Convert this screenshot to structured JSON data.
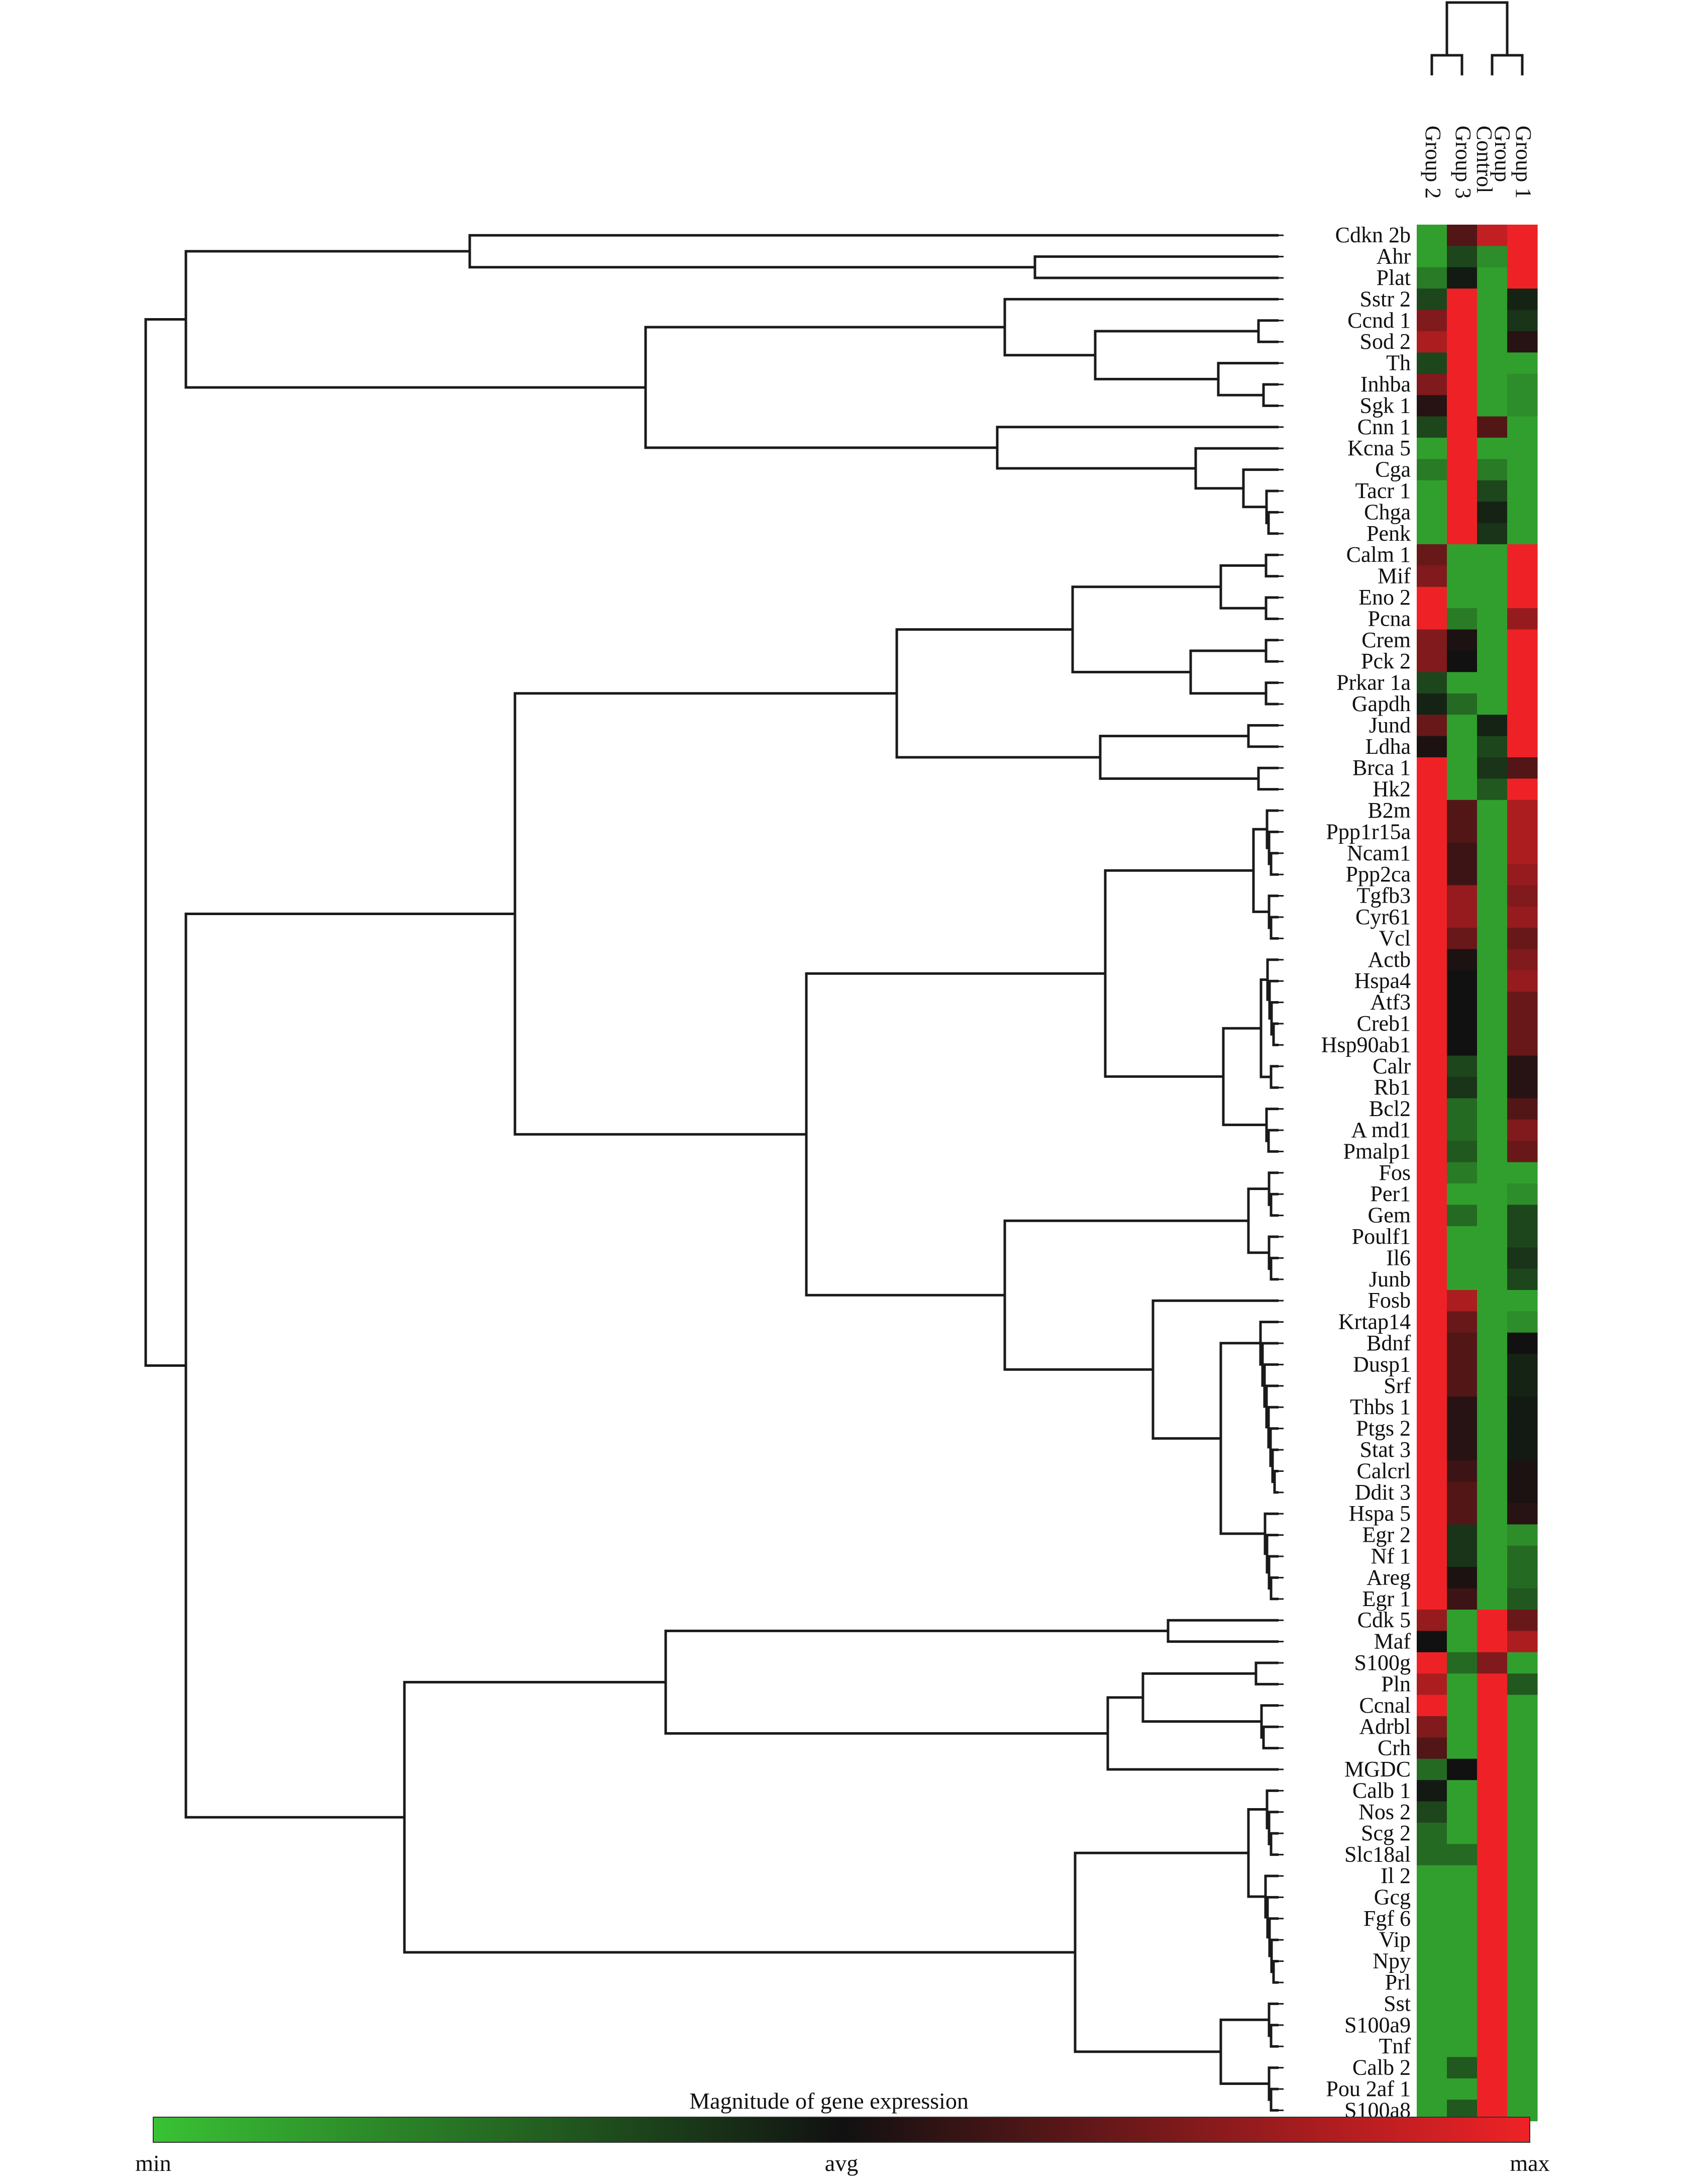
{
  "chart_data": {
    "type": "heatmap",
    "title": "",
    "legend": {
      "title": "Magnitude of gene expression",
      "min_label": "min",
      "mid_label": "avg",
      "max_label": "max",
      "colors": {
        "min": "#39c234",
        "avg": "#111111",
        "max": "#ee2226"
      },
      "placement": "bottom"
    },
    "dendrogram": {
      "rows": "left",
      "columns": "top"
    },
    "columns": [
      "Group 2",
      "Group 3",
      "Control Group",
      "Group 1"
    ],
    "column_leaf_labels": [
      "Group 2",
      "Group 3",
      "Control",
      "Group",
      "Group 1"
    ],
    "scale": "min -1 ... avg 0 ... max 1 (relative expression)",
    "rows": [
      "Cdkn 2b",
      "Ahr",
      "Plat",
      "Sstr 2",
      "Ccnd 1",
      "Sod 2",
      "Th",
      "Inhba",
      "Sgk 1",
      "Cnn 1",
      "Kcna 5",
      "Cga",
      "Tacr 1",
      "Chga",
      "Penk",
      "Calm 1",
      "Mif",
      "Eno 2",
      "Pcna",
      "Crem",
      "Pck 2",
      "Prkar 1a",
      "Gapdh",
      "Jund",
      "Ldha",
      "Brca 1",
      "Hk2",
      "B2m",
      "Ppp1r15a",
      "Ncam1",
      "Ppp2ca",
      "Tgfb3",
      "Cyr61",
      "Vcl",
      "Actb",
      "Hspa4",
      "Atf3",
      "Creb1",
      "Hsp90ab1",
      "Calr",
      "Rb1",
      "Bcl2",
      "A md1",
      "Pmalp1",
      "Fos",
      "Per1",
      "Gem",
      "Poulf1",
      "Il6",
      "Junb",
      "Fosb",
      "Krtap14",
      "Bdnf",
      "Dusp1",
      "Srf",
      "Thbs 1",
      "Ptgs 2",
      "Stat 3",
      "Calcrl",
      "Ddit 3",
      "Hspa 5",
      "Egr 2",
      "Nf 1",
      "Areg",
      "Egr 1",
      "Cdk 5",
      "Maf",
      "S100g",
      "Pln",
      "Ccnal",
      "Adrbl",
      "Crh",
      "MGDC",
      "Calb 1",
      "Nos 2",
      "Scg 2",
      "Slc18al",
      "Il 2",
      "Gcg",
      "Fgf 6",
      "Vip",
      "Npy",
      "Prl",
      "Sst",
      "S100a9",
      "Tnf",
      "Calb 2",
      "Pou 2af 1",
      "S100a8"
    ],
    "values": [
      [
        -0.8,
        0.3,
        0.8,
        1.0
      ],
      [
        -0.8,
        -0.3,
        -0.7,
        1.0
      ],
      [
        -0.6,
        -0.05,
        -0.8,
        1.0
      ],
      [
        -0.3,
        1.0,
        -0.8,
        -0.1
      ],
      [
        0.5,
        1.0,
        -0.8,
        -0.2
      ],
      [
        0.7,
        1.0,
        -0.8,
        0.1
      ],
      [
        -0.3,
        1.0,
        -0.8,
        -0.8
      ],
      [
        0.5,
        1.0,
        -0.8,
        -0.7
      ],
      [
        0.1,
        1.0,
        -0.8,
        -0.7
      ],
      [
        -0.3,
        1.0,
        0.3,
        -0.8
      ],
      [
        -0.8,
        1.0,
        -0.8,
        -0.8
      ],
      [
        -0.6,
        1.0,
        -0.6,
        -0.8
      ],
      [
        -0.8,
        1.0,
        -0.3,
        -0.8
      ],
      [
        -0.8,
        1.0,
        -0.1,
        -0.8
      ],
      [
        -0.8,
        1.0,
        -0.2,
        -0.8
      ],
      [
        0.4,
        -0.8,
        -0.8,
        1.0
      ],
      [
        0.5,
        -0.8,
        -0.8,
        1.0
      ],
      [
        1.0,
        -0.8,
        -0.8,
        1.0
      ],
      [
        1.0,
        -0.6,
        -0.8,
        0.6
      ],
      [
        0.5,
        0.05,
        -0.8,
        1.0
      ],
      [
        0.5,
        0.0,
        -0.8,
        1.0
      ],
      [
        -0.3,
        -0.8,
        -0.8,
        1.0
      ],
      [
        -0.1,
        -0.5,
        -0.8,
        1.0
      ],
      [
        0.4,
        -0.8,
        -0.1,
        1.0
      ],
      [
        0.05,
        -0.8,
        -0.3,
        1.0
      ],
      [
        1.0,
        -0.8,
        -0.2,
        0.3
      ],
      [
        1.0,
        -0.8,
        -0.4,
        1.0
      ],
      [
        1.0,
        0.3,
        -0.8,
        0.7
      ],
      [
        1.0,
        0.3,
        -0.8,
        0.7
      ],
      [
        1.0,
        0.2,
        -0.8,
        0.7
      ],
      [
        1.0,
        0.2,
        -0.8,
        0.6
      ],
      [
        1.0,
        0.6,
        -0.8,
        0.5
      ],
      [
        1.0,
        0.6,
        -0.8,
        0.6
      ],
      [
        1.0,
        0.4,
        -0.8,
        0.4
      ],
      [
        1.0,
        0.05,
        -0.8,
        0.5
      ],
      [
        1.0,
        0.0,
        -0.8,
        0.6
      ],
      [
        1.0,
        0.0,
        -0.8,
        0.4
      ],
      [
        1.0,
        0.0,
        -0.8,
        0.4
      ],
      [
        1.0,
        0.0,
        -0.8,
        0.4
      ],
      [
        1.0,
        -0.3,
        -0.8,
        0.1
      ],
      [
        1.0,
        -0.2,
        -0.8,
        0.1
      ],
      [
        1.0,
        -0.5,
        -0.8,
        0.3
      ],
      [
        1.0,
        -0.5,
        -0.8,
        0.5
      ],
      [
        1.0,
        -0.4,
        -0.8,
        0.4
      ],
      [
        1.0,
        -0.6,
        -0.8,
        -0.8
      ],
      [
        1.0,
        -0.8,
        -0.8,
        -0.7
      ],
      [
        1.0,
        -0.5,
        -0.8,
        -0.3
      ],
      [
        1.0,
        -0.8,
        -0.8,
        -0.3
      ],
      [
        1.0,
        -0.8,
        -0.8,
        -0.2
      ],
      [
        1.0,
        -0.8,
        -0.8,
        -0.3
      ],
      [
        1.0,
        0.7,
        -0.8,
        -0.8
      ],
      [
        1.0,
        0.4,
        -0.8,
        -0.7
      ],
      [
        1.0,
        0.3,
        -0.8,
        0.0
      ],
      [
        1.0,
        0.3,
        -0.8,
        -0.1
      ],
      [
        1.0,
        0.3,
        -0.8,
        -0.1
      ],
      [
        1.0,
        0.1,
        -0.8,
        -0.05
      ],
      [
        1.0,
        0.1,
        -0.8,
        -0.05
      ],
      [
        1.0,
        0.1,
        -0.8,
        -0.05
      ],
      [
        1.0,
        0.2,
        -0.8,
        0.05
      ],
      [
        1.0,
        0.3,
        -0.8,
        0.05
      ],
      [
        1.0,
        0.3,
        -0.8,
        0.1
      ],
      [
        1.0,
        -0.2,
        -0.8,
        -0.7
      ],
      [
        1.0,
        -0.2,
        -0.8,
        -0.5
      ],
      [
        1.0,
        0.05,
        -0.8,
        -0.5
      ],
      [
        1.0,
        0.2,
        -0.8,
        -0.4
      ],
      [
        0.6,
        -0.8,
        1.0,
        0.4
      ],
      [
        0.0,
        -0.8,
        1.0,
        0.7
      ],
      [
        1.0,
        -0.5,
        0.5,
        -0.8
      ],
      [
        0.7,
        -0.8,
        1.0,
        -0.4
      ],
      [
        1.0,
        -0.8,
        1.0,
        -0.8
      ],
      [
        0.5,
        -0.8,
        1.0,
        -0.8
      ],
      [
        0.3,
        -0.8,
        1.0,
        -0.8
      ],
      [
        -0.5,
        0.0,
        1.0,
        -0.8
      ],
      [
        -0.05,
        -0.8,
        1.0,
        -0.8
      ],
      [
        -0.3,
        -0.8,
        1.0,
        -0.8
      ],
      [
        -0.5,
        -0.8,
        1.0,
        -0.8
      ],
      [
        -0.5,
        -0.5,
        1.0,
        -0.8
      ],
      [
        -0.8,
        -0.8,
        1.0,
        -0.8
      ],
      [
        -0.8,
        -0.8,
        1.0,
        -0.8
      ],
      [
        -0.8,
        -0.8,
        1.0,
        -0.8
      ],
      [
        -0.8,
        -0.8,
        1.0,
        -0.8
      ],
      [
        -0.8,
        -0.8,
        1.0,
        -0.8
      ],
      [
        -0.8,
        -0.8,
        1.0,
        -0.8
      ],
      [
        -0.8,
        -0.8,
        1.0,
        -0.8
      ],
      [
        -0.8,
        -0.8,
        1.0,
        -0.8
      ],
      [
        -0.8,
        -0.8,
        1.0,
        -0.8
      ],
      [
        -0.8,
        -0.4,
        1.0,
        -0.8
      ],
      [
        -0.8,
        -0.8,
        1.0,
        -0.8
      ],
      [
        -0.8,
        -0.4,
        1.0,
        -0.8
      ]
    ]
  }
}
